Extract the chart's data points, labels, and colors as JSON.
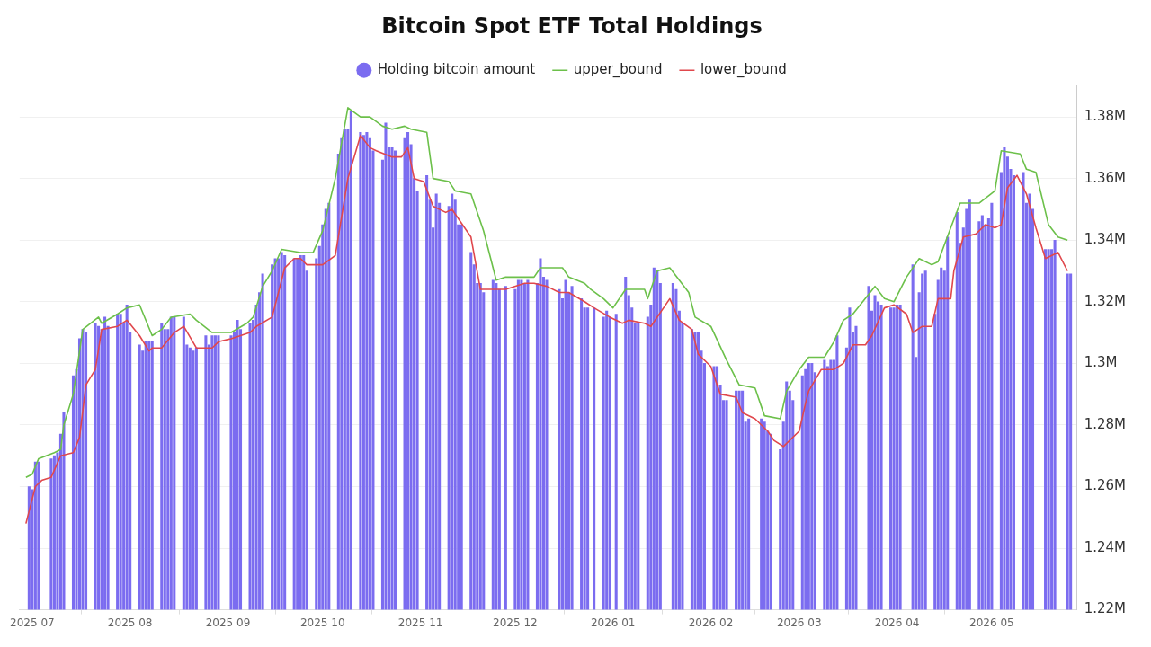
{
  "chart_data": {
    "type": "bar",
    "title": "Bitcoin Spot ETF Total Holdings",
    "legend": "top",
    "grid": "y",
    "xlim": [
      "2025-06-27",
      "2026-05-28"
    ],
    "xticks": [
      {
        "value": "2025-07-01",
        "label": "2025 07"
      },
      {
        "value": "2025-08-01",
        "label": "2025 08"
      },
      {
        "value": "2025-09-01",
        "label": "2025 09"
      },
      {
        "value": "2025-10-01",
        "label": "2025 10"
      },
      {
        "value": "2025-11-01",
        "label": "2025 11"
      },
      {
        "value": "2025-12-01",
        "label": "2025 12"
      },
      {
        "value": "2026-01-01",
        "label": "2026 01"
      },
      {
        "value": "2026-02-01",
        "label": "2026 02"
      },
      {
        "value": "2026-03-01",
        "label": "2026 03"
      },
      {
        "value": "2026-04-01",
        "label": "2026 04"
      },
      {
        "value": "2026-05-01",
        "label": "2026 05"
      }
    ],
    "ylim": [
      1220000,
      1390000
    ],
    "yticks": [
      {
        "value": 1220000,
        "label": "1.22M"
      },
      {
        "value": 1240000,
        "label": "1.24M"
      },
      {
        "value": 1260000,
        "label": "1.26M"
      },
      {
        "value": 1280000,
        "label": "1.28M"
      },
      {
        "value": 1300000,
        "label": "1.3M"
      },
      {
        "value": 1320000,
        "label": "1.32M"
      },
      {
        "value": 1340000,
        "label": "1.34M"
      },
      {
        "value": 1360000,
        "label": "1.36M"
      },
      {
        "value": 1380000,
        "label": "1.38M"
      }
    ],
    "series": [
      {
        "name": "Holding bitcoin amount",
        "color": "#7b6cf0",
        "x": [
          "2025-06-30",
          "2025-07-01",
          "2025-07-02",
          "2025-07-03",
          "2025-07-07",
          "2025-07-08",
          "2025-07-09",
          "2025-07-10",
          "2025-07-11",
          "2025-07-14",
          "2025-07-15",
          "2025-07-16",
          "2025-07-17",
          "2025-07-18",
          "2025-07-21",
          "2025-07-22",
          "2025-07-23",
          "2025-07-24",
          "2025-07-25",
          "2025-07-28",
          "2025-07-29",
          "2025-07-30",
          "2025-07-31",
          "2025-08-01",
          "2025-08-04",
          "2025-08-05",
          "2025-08-06",
          "2025-08-07",
          "2025-08-08",
          "2025-08-11",
          "2025-08-12",
          "2025-08-13",
          "2025-08-14",
          "2025-08-15",
          "2025-08-18",
          "2025-08-19",
          "2025-08-20",
          "2025-08-21",
          "2025-08-22",
          "2025-08-25",
          "2025-08-26",
          "2025-08-27",
          "2025-08-28",
          "2025-08-29",
          "2025-09-02",
          "2025-09-03",
          "2025-09-04",
          "2025-09-05",
          "2025-09-08",
          "2025-09-09",
          "2025-09-10",
          "2025-09-11",
          "2025-09-12",
          "2025-09-15",
          "2025-09-16",
          "2025-09-17",
          "2025-09-18",
          "2025-09-19",
          "2025-09-22",
          "2025-09-23",
          "2025-09-24",
          "2025-09-25",
          "2025-09-26",
          "2025-09-29",
          "2025-09-30",
          "2025-10-01",
          "2025-10-02",
          "2025-10-03",
          "2025-10-06",
          "2025-10-07",
          "2025-10-08",
          "2025-10-09",
          "2025-10-10",
          "2025-10-13",
          "2025-10-14",
          "2025-10-15",
          "2025-10-16",
          "2025-10-17",
          "2025-10-20",
          "2025-10-21",
          "2025-10-22",
          "2025-10-23",
          "2025-10-24",
          "2025-10-27",
          "2025-10-28",
          "2025-10-29",
          "2025-10-30",
          "2025-10-31",
          "2025-11-03",
          "2025-11-04",
          "2025-11-05",
          "2025-11-06",
          "2025-11-07",
          "2025-11-10",
          "2025-11-11",
          "2025-11-12",
          "2025-11-13",
          "2025-11-14",
          "2025-11-17",
          "2025-11-18",
          "2025-11-19",
          "2025-11-20",
          "2025-11-21",
          "2025-11-24",
          "2025-11-25",
          "2025-11-26",
          "2025-11-28",
          "2025-12-01",
          "2025-12-02",
          "2025-12-03",
          "2025-12-04",
          "2025-12-05",
          "2025-12-08",
          "2025-12-09",
          "2025-12-10",
          "2025-12-11",
          "2025-12-15",
          "2025-12-16",
          "2025-12-17",
          "2025-12-18",
          "2025-12-19",
          "2025-12-22",
          "2025-12-23",
          "2025-12-24",
          "2025-12-26",
          "2025-12-29",
          "2025-12-30",
          "2025-12-31",
          "2026-01-02",
          "2026-01-05",
          "2026-01-06",
          "2026-01-07",
          "2026-01-08",
          "2026-01-09",
          "2026-01-12",
          "2026-01-13",
          "2026-01-14",
          "2026-01-15",
          "2026-01-16",
          "2026-01-20",
          "2026-01-21",
          "2026-01-22",
          "2026-01-23",
          "2026-01-26",
          "2026-01-27",
          "2026-01-28",
          "2026-01-29",
          "2026-01-30",
          "2026-02-02",
          "2026-02-03",
          "2026-02-04",
          "2026-02-05",
          "2026-02-06",
          "2026-02-09",
          "2026-02-10",
          "2026-02-11",
          "2026-02-12",
          "2026-02-13",
          "2026-02-17",
          "2026-02-18",
          "2026-02-19",
          "2026-02-20",
          "2026-02-23",
          "2026-02-24",
          "2026-02-25",
          "2026-02-26",
          "2026-02-27",
          "2026-03-02",
          "2026-03-03",
          "2026-03-04",
          "2026-03-05",
          "2026-03-06",
          "2026-03-09",
          "2026-03-10",
          "2026-03-11",
          "2026-03-12",
          "2026-03-13",
          "2026-03-16",
          "2026-03-17",
          "2026-03-18",
          "2026-03-19",
          "2026-03-23",
          "2026-03-24",
          "2026-03-25",
          "2026-03-26",
          "2026-03-27",
          "2026-03-30",
          "2026-03-31",
          "2026-04-01",
          "2026-04-02",
          "2026-04-06",
          "2026-04-07",
          "2026-04-08",
          "2026-04-09",
          "2026-04-10",
          "2026-04-13",
          "2026-04-14",
          "2026-04-15",
          "2026-04-16",
          "2026-04-17",
          "2026-04-20",
          "2026-04-21",
          "2026-04-22",
          "2026-04-23",
          "2026-04-24",
          "2026-04-27",
          "2026-04-28",
          "2026-04-29",
          "2026-04-30",
          "2026-05-01",
          "2026-05-04",
          "2026-05-05",
          "2026-05-06",
          "2026-05-07",
          "2026-05-08",
          "2026-05-11",
          "2026-05-12",
          "2026-05-13",
          "2026-05-14",
          "2026-05-18",
          "2026-05-19",
          "2026-05-20",
          "2026-05-21",
          "2026-05-25",
          "2026-05-26"
        ],
        "values": [
          1260000,
          1259000,
          1268000,
          1268000,
          1269000,
          1270000,
          1271000,
          1277000,
          1284000,
          1296000,
          1298000,
          1308000,
          1311000,
          1310000,
          1313000,
          1312000,
          1311000,
          1315000,
          1312000,
          1316000,
          1316000,
          1313000,
          1319000,
          1310000,
          1306000,
          1304000,
          1307000,
          1307000,
          1307000,
          1313000,
          1311000,
          1311000,
          1315000,
          1315000,
          1315000,
          1306000,
          1305000,
          1304000,
          1305000,
          1309000,
          1306000,
          1309000,
          1309000,
          1309000,
          1309000,
          1310000,
          1314000,
          1311000,
          1313000,
          1314000,
          1319000,
          1323000,
          1329000,
          1332000,
          1334000,
          1334000,
          1336000,
          1335000,
          1334000,
          1334000,
          1335000,
          1335000,
          1330000,
          1334000,
          1338000,
          1345000,
          1350000,
          1352000,
          1368000,
          1373000,
          1376000,
          1376000,
          1382000,
          1375000,
          1374000,
          1375000,
          1373000,
          1369000,
          1366000,
          1378000,
          1370000,
          1370000,
          1369000,
          1373000,
          1375000,
          1371000,
          1360000,
          1356000,
          1361000,
          1353000,
          1344000,
          1355000,
          1352000,
          1351000,
          1355000,
          1353000,
          1345000,
          1345000,
          1336000,
          1332000,
          1326000,
          1326000,
          1323000,
          1327000,
          1326000,
          1324000,
          1325000,
          1324000,
          1327000,
          1327000,
          1326000,
          1327000,
          1326000,
          1334000,
          1328000,
          1327000,
          1324000,
          1321000,
          1327000,
          1323000,
          1325000,
          1321000,
          1318000,
          1318000,
          1318000,
          1315000,
          1317000,
          1315000,
          1316000,
          1328000,
          1322000,
          1318000,
          1313000,
          1313000,
          1315000,
          1319000,
          1331000,
          1330000,
          1326000,
          1326000,
          1324000,
          1317000,
          1313000,
          1311000,
          1310000,
          1310000,
          1304000,
          1300000,
          1299000,
          1299000,
          1293000,
          1288000,
          1288000,
          1291000,
          1291000,
          1291000,
          1281000,
          1282000,
          1282000,
          1281000,
          1278000,
          1277000,
          1272000,
          1281000,
          1294000,
          1291000,
          1288000,
          1296000,
          1298000,
          1300000,
          1300000,
          1297000,
          1301000,
          1299000,
          1301000,
          1301000,
          1309000,
          1305000,
          1318000,
          1310000,
          1312000,
          1325000,
          1317000,
          1322000,
          1320000,
          1319000,
          1318000,
          1318000,
          1319000,
          1319000,
          1332000,
          1302000,
          1323000,
          1329000,
          1330000,
          1316000,
          1327000,
          1331000,
          1330000,
          1341000,
          1349000,
          1339000,
          1344000,
          1350000,
          1353000,
          1346000,
          1348000,
          1345000,
          1347000,
          1352000,
          1362000,
          1370000,
          1367000,
          1363000,
          1361000,
          1362000,
          1352000,
          1355000,
          1350000,
          1337000,
          1337000,
          1337000,
          1340000,
          1329000,
          1329000
        ]
      },
      {
        "name": "upper_bound",
        "type": "line",
        "color": "#6cc04a",
        "x": [
          "2025-06-29",
          "2025-07-01",
          "2025-07-03",
          "2025-07-08",
          "2025-07-10",
          "2025-07-11",
          "2025-07-14",
          "2025-07-17",
          "2025-07-22",
          "2025-07-23",
          "2025-07-28",
          "2025-07-31",
          "2025-08-04",
          "2025-08-08",
          "2025-08-11",
          "2025-08-14",
          "2025-08-20",
          "2025-08-22",
          "2025-08-27",
          "2025-09-02",
          "2025-09-07",
          "2025-09-09",
          "2025-09-12",
          "2025-09-15",
          "2025-09-18",
          "2025-09-24",
          "2025-09-28",
          "2025-10-01",
          "2025-10-05",
          "2025-10-09",
          "2025-10-13",
          "2025-10-16",
          "2025-10-20",
          "2025-10-23",
          "2025-10-27",
          "2025-10-29",
          "2025-11-03",
          "2025-11-05",
          "2025-11-10",
          "2025-11-12",
          "2025-11-17",
          "2025-11-21",
          "2025-11-25",
          "2025-11-28",
          "2025-12-07",
          "2025-12-09",
          "2025-12-16",
          "2025-12-18",
          "2025-12-23",
          "2025-12-25",
          "2025-12-29",
          "2026-01-01",
          "2026-01-05",
          "2026-01-11",
          "2026-01-12",
          "2026-01-15",
          "2026-01-19",
          "2026-01-22",
          "2026-01-25",
          "2026-01-27",
          "2026-02-01",
          "2026-02-06",
          "2026-02-10",
          "2026-02-15",
          "2026-02-18",
          "2026-02-23",
          "2026-02-25",
          "2026-03-01",
          "2026-03-04",
          "2026-03-09",
          "2026-03-12",
          "2026-03-15",
          "2026-03-18",
          "2026-03-25",
          "2026-03-28",
          "2026-03-31",
          "2026-04-04",
          "2026-04-08",
          "2026-04-12",
          "2026-04-14",
          "2026-04-18",
          "2026-04-21",
          "2026-04-27",
          "2026-05-02",
          "2026-05-04",
          "2026-05-10",
          "2026-05-12",
          "2026-05-15",
          "2026-05-19",
          "2026-05-22",
          "2026-05-25"
        ],
        "values": [
          1263000,
          1264000,
          1269000,
          1271000,
          1272000,
          1280000,
          1290000,
          1311000,
          1315000,
          1313000,
          1316000,
          1318000,
          1319000,
          1309000,
          1311000,
          1315000,
          1316000,
          1314000,
          1310000,
          1310000,
          1313000,
          1315000,
          1325000,
          1330000,
          1337000,
          1336000,
          1336000,
          1343000,
          1360000,
          1383000,
          1380000,
          1380000,
          1377000,
          1376000,
          1377000,
          1376000,
          1375000,
          1360000,
          1359000,
          1356000,
          1355000,
          1343000,
          1327000,
          1328000,
          1328000,
          1331000,
          1331000,
          1328000,
          1326000,
          1324000,
          1321000,
          1318000,
          1324000,
          1324000,
          1321000,
          1330000,
          1331000,
          1327000,
          1323000,
          1315000,
          1312000,
          1301000,
          1293000,
          1292000,
          1283000,
          1282000,
          1291000,
          1298000,
          1302000,
          1302000,
          1307000,
          1314000,
          1316000,
          1325000,
          1321000,
          1320000,
          1328000,
          1334000,
          1332000,
          1333000,
          1344000,
          1352000,
          1352000,
          1356000,
          1369000,
          1368000,
          1363000,
          1362000,
          1345000,
          1341000,
          1340000
        ]
      },
      {
        "name": "lower_bound",
        "type": "line",
        "color": "#e0474c",
        "x": [
          "2025-06-29",
          "2025-07-02",
          "2025-07-04",
          "2025-07-07",
          "2025-07-10",
          "2025-07-14",
          "2025-07-16",
          "2025-07-18",
          "2025-07-21",
          "2025-07-23",
          "2025-07-28",
          "2025-07-31",
          "2025-08-04",
          "2025-08-07",
          "2025-08-08",
          "2025-08-11",
          "2025-08-15",
          "2025-08-18",
          "2025-08-22",
          "2025-08-27",
          "2025-08-29",
          "2025-09-02",
          "2025-09-08",
          "2025-09-10",
          "2025-09-15",
          "2025-09-19",
          "2025-09-22",
          "2025-09-24",
          "2025-09-26",
          "2025-10-01",
          "2025-10-05",
          "2025-10-09",
          "2025-10-13",
          "2025-10-16",
          "2025-10-18",
          "2025-10-23",
          "2025-10-26",
          "2025-10-28",
          "2025-10-30",
          "2025-11-02",
          "2025-11-05",
          "2025-11-09",
          "2025-11-11",
          "2025-11-17",
          "2025-11-20",
          "2025-11-25",
          "2025-11-28",
          "2025-12-04",
          "2025-12-07",
          "2025-12-11",
          "2025-12-15",
          "2025-12-18",
          "2025-12-23",
          "2025-12-26",
          "2025-12-31",
          "2026-01-04",
          "2026-01-06",
          "2026-01-11",
          "2026-01-13",
          "2026-01-19",
          "2026-01-22",
          "2026-01-26",
          "2026-01-28",
          "2026-02-01",
          "2026-02-04",
          "2026-02-09",
          "2026-02-11",
          "2026-02-15",
          "2026-02-19",
          "2026-02-21",
          "2026-02-24",
          "2026-03-01",
          "2026-03-03",
          "2026-03-04",
          "2026-03-08",
          "2026-03-12",
          "2026-03-15",
          "2026-03-18",
          "2026-03-22",
          "2026-03-24",
          "2026-03-28",
          "2026-03-31",
          "2026-04-04",
          "2026-04-06",
          "2026-04-09",
          "2026-04-12",
          "2026-04-14",
          "2026-04-18",
          "2026-04-19",
          "2026-04-22",
          "2026-04-26",
          "2026-04-29",
          "2026-05-02",
          "2026-05-04",
          "2026-05-06",
          "2026-05-09",
          "2026-05-12",
          "2026-05-15",
          "2026-05-18",
          "2026-05-22",
          "2026-05-25"
        ],
        "values": [
          1248000,
          1260000,
          1262000,
          1263000,
          1270000,
          1271000,
          1276000,
          1293000,
          1298000,
          1311000,
          1312000,
          1314000,
          1309000,
          1304000,
          1305000,
          1305000,
          1310000,
          1312000,
          1305000,
          1305000,
          1307000,
          1308000,
          1310000,
          1312000,
          1315000,
          1331000,
          1334000,
          1334000,
          1332000,
          1332000,
          1335000,
          1360000,
          1374000,
          1370000,
          1369000,
          1367000,
          1367000,
          1370000,
          1360000,
          1359000,
          1351000,
          1349000,
          1350000,
          1341000,
          1324000,
          1324000,
          1324000,
          1326000,
          1326000,
          1325000,
          1323000,
          1323000,
          1320000,
          1318000,
          1315000,
          1313000,
          1314000,
          1313000,
          1312000,
          1321000,
          1314000,
          1311000,
          1303000,
          1299000,
          1290000,
          1289000,
          1284000,
          1282000,
          1278000,
          1275000,
          1273000,
          1278000,
          1287000,
          1291000,
          1298000,
          1298000,
          1300000,
          1306000,
          1306000,
          1309000,
          1318000,
          1319000,
          1316000,
          1310000,
          1312000,
          1312000,
          1321000,
          1321000,
          1330000,
          1341000,
          1342000,
          1345000,
          1344000,
          1345000,
          1357000,
          1361000,
          1355000,
          1344000,
          1334000,
          1336000,
          1330000
        ]
      }
    ]
  }
}
